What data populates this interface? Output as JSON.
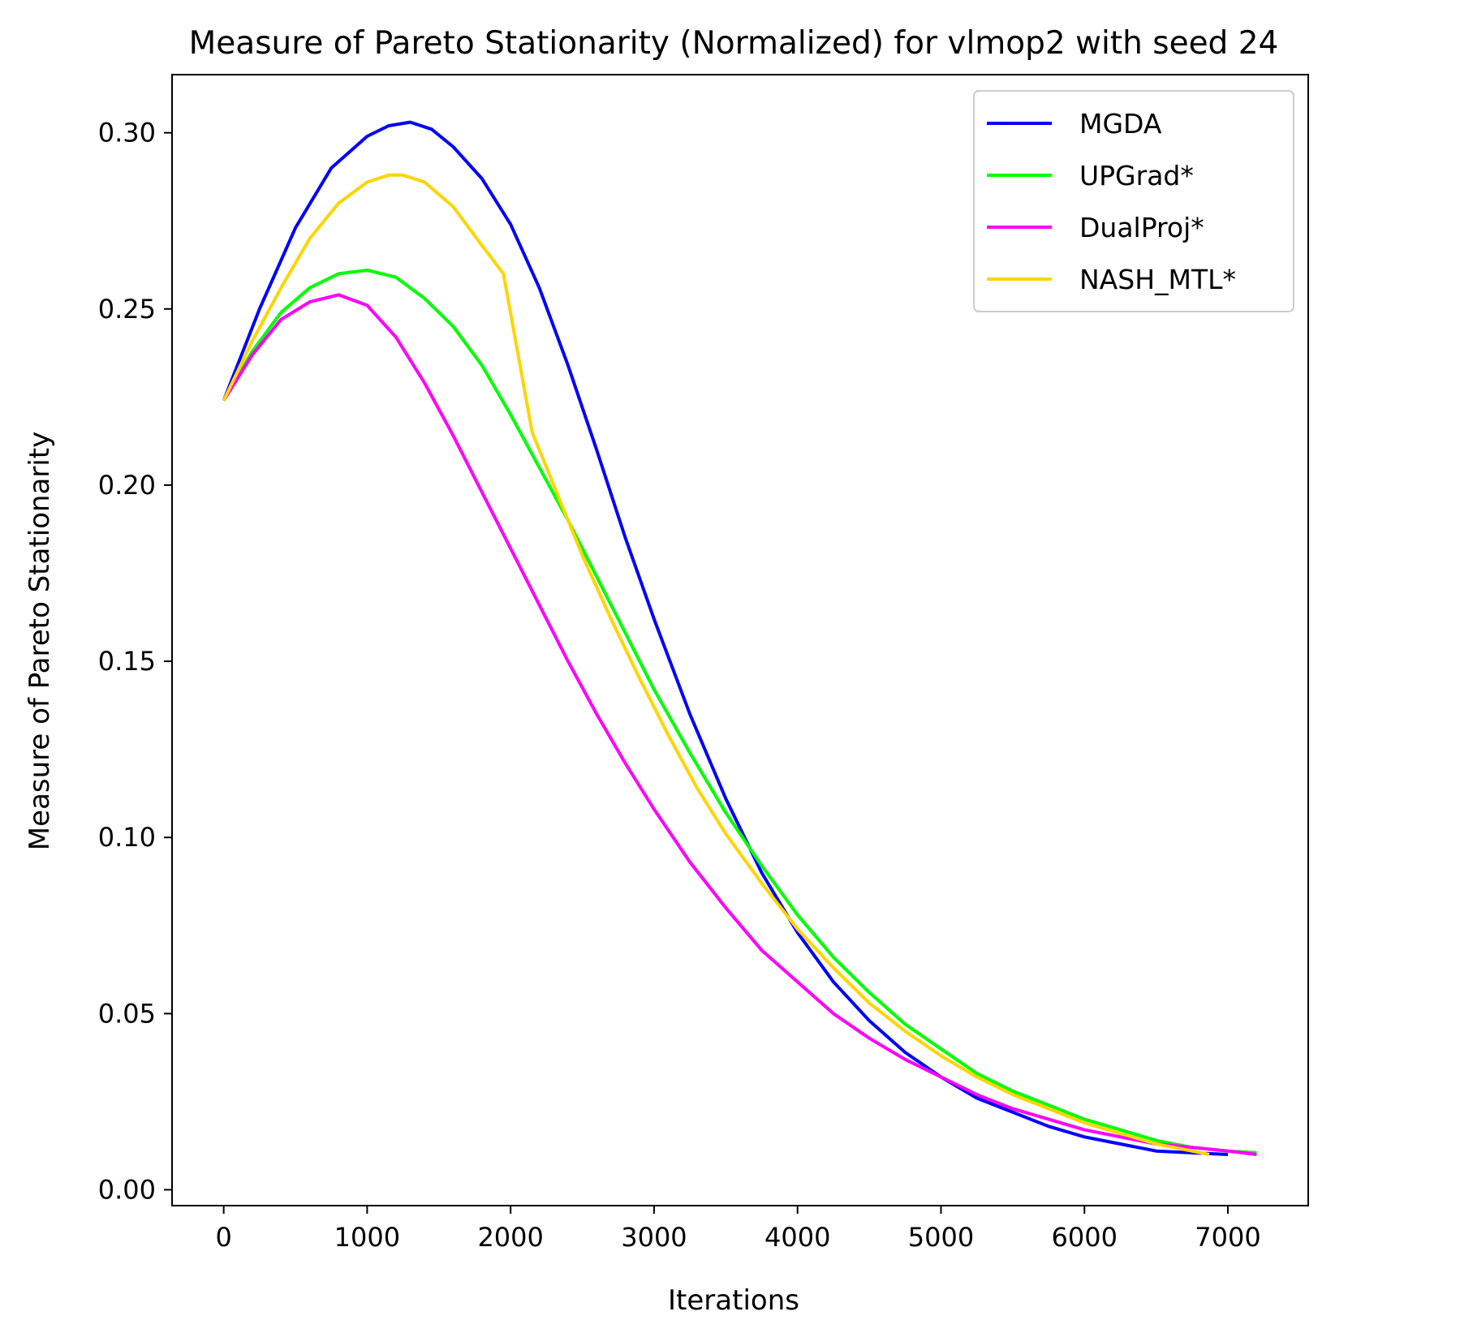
{
  "chart_data": {
    "type": "line",
    "title": "Measure of Pareto Stationarity (Normalized) for vlmop2 with seed 24",
    "xlabel": "Iterations",
    "ylabel": "Measure of Pareto Stationarity",
    "xlim": [
      -360,
      7560
    ],
    "ylim": [
      -0.0045,
      0.3165
    ],
    "xticks": [
      0,
      1000,
      2000,
      3000,
      4000,
      5000,
      6000,
      7000
    ],
    "xtick_labels": [
      "0",
      "1000",
      "2000",
      "3000",
      "4000",
      "5000",
      "6000",
      "7000"
    ],
    "yticks": [
      0.0,
      0.05,
      0.1,
      0.15,
      0.2,
      0.25,
      0.3
    ],
    "ytick_labels": [
      "0.00",
      "0.05",
      "0.10",
      "0.15",
      "0.20",
      "0.25",
      "0.30"
    ],
    "grid": false,
    "legend_position": "upper-right",
    "series": [
      {
        "name": "MGDA",
        "color": "#0000ff",
        "x": [
          0,
          250,
          500,
          750,
          1000,
          1150,
          1300,
          1450,
          1600,
          1800,
          2000,
          2200,
          2400,
          2600,
          2800,
          3000,
          3250,
          3500,
          3750,
          4000,
          4250,
          4500,
          4750,
          5000,
          5250,
          5500,
          5750,
          6000,
          6250,
          6500,
          6750,
          7000
        ],
        "y": [
          0.224,
          0.25,
          0.273,
          0.29,
          0.299,
          0.302,
          0.303,
          0.301,
          0.296,
          0.287,
          0.274,
          0.256,
          0.234,
          0.21,
          0.185,
          0.162,
          0.135,
          0.111,
          0.09,
          0.073,
          0.059,
          0.048,
          0.039,
          0.032,
          0.026,
          0.022,
          0.018,
          0.015,
          0.013,
          0.011,
          0.0105,
          0.01
        ]
      },
      {
        "name": "UPGrad*",
        "color": "#00ff00",
        "x": [
          0,
          200,
          400,
          600,
          800,
          1000,
          1200,
          1400,
          1600,
          1800,
          2000,
          2200,
          2400,
          2600,
          2800,
          3000,
          3250,
          3500,
          3750,
          4000,
          4250,
          4500,
          4750,
          5000,
          5250,
          5500,
          5750,
          6000,
          6250,
          6500,
          6750,
          7000,
          7200
        ],
        "y": [
          0.224,
          0.238,
          0.249,
          0.256,
          0.26,
          0.261,
          0.259,
          0.253,
          0.245,
          0.234,
          0.22,
          0.205,
          0.19,
          0.174,
          0.158,
          0.142,
          0.124,
          0.107,
          0.092,
          0.078,
          0.066,
          0.056,
          0.047,
          0.04,
          0.033,
          0.028,
          0.024,
          0.02,
          0.017,
          0.014,
          0.012,
          0.011,
          0.0105
        ]
      },
      {
        "name": "DualProj*",
        "color": "#ff00ff",
        "x": [
          0,
          200,
          400,
          600,
          800,
          1000,
          1200,
          1400,
          1600,
          1800,
          2000,
          2200,
          2400,
          2600,
          2800,
          3000,
          3250,
          3500,
          3750,
          4000,
          4250,
          4500,
          4750,
          5000,
          5250,
          5500,
          5750,
          6000,
          6250,
          6500,
          6750,
          7000,
          7200
        ],
        "y": [
          0.224,
          0.237,
          0.247,
          0.252,
          0.254,
          0.251,
          0.242,
          0.229,
          0.214,
          0.198,
          0.182,
          0.166,
          0.15,
          0.135,
          0.121,
          0.108,
          0.093,
          0.08,
          0.068,
          0.059,
          0.05,
          0.043,
          0.037,
          0.032,
          0.027,
          0.023,
          0.02,
          0.017,
          0.015,
          0.013,
          0.012,
          0.011,
          0.01
        ]
      },
      {
        "name": "NASH_MTL*",
        "color": "#ffd500",
        "x": [
          0,
          200,
          400,
          600,
          800,
          1000,
          1150,
          1250,
          1400,
          1600,
          1800,
          1950,
          2150,
          2300,
          2500,
          2700,
          2900,
          3100,
          3300,
          3500,
          3750,
          4000,
          4250,
          4500,
          4750,
          5000,
          5250,
          5500,
          5750,
          6000,
          6250,
          6500,
          6750,
          6870
        ],
        "y": [
          0.224,
          0.241,
          0.256,
          0.27,
          0.28,
          0.286,
          0.288,
          0.288,
          0.286,
          0.279,
          0.268,
          0.26,
          0.215,
          0.2,
          0.18,
          0.162,
          0.145,
          0.129,
          0.114,
          0.101,
          0.087,
          0.074,
          0.063,
          0.053,
          0.045,
          0.038,
          0.032,
          0.027,
          0.023,
          0.019,
          0.016,
          0.013,
          0.011,
          0.01
        ]
      }
    ]
  }
}
